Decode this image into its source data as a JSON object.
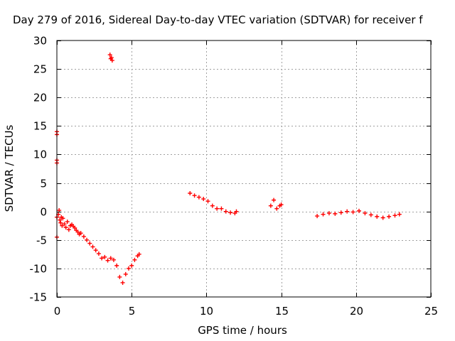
{
  "chart_data": {
    "type": "scatter",
    "title": "Day 279 of 2016, Sidereal Day-to-day VTEC variation (SDTVAR) for receiver f",
    "xlabel": "GPS time / hours",
    "ylabel": "SDTVAR / TECUs",
    "xlim": [
      0,
      25
    ],
    "ylim": [
      -15,
      30
    ],
    "xticks": [
      0,
      5,
      10,
      15,
      20,
      25
    ],
    "yticks": [
      -15,
      -10,
      -5,
      0,
      5,
      10,
      15,
      20,
      25,
      30
    ],
    "xtick_labels": [
      "0",
      "5",
      "10",
      "15",
      "20",
      "25"
    ],
    "ytick_labels": [
      "-15",
      "-10",
      "-5",
      "0",
      "5",
      "10",
      "15",
      "20",
      "25",
      "30"
    ],
    "grid": true,
    "marker": "plus",
    "color": "#ff0000",
    "series": [
      {
        "x": [
          0.0,
          0.0,
          0.0,
          0.0,
          0.0,
          0.0,
          0.1,
          0.15,
          0.2,
          0.25,
          0.3,
          0.35,
          0.4,
          0.5,
          0.6,
          0.7,
          0.8,
          0.9,
          1.0,
          1.1,
          1.2,
          1.3,
          1.4,
          1.5,
          1.6,
          1.8,
          2.0,
          2.2,
          2.4,
          2.6,
          2.8,
          3.0,
          3.2,
          3.4,
          3.6,
          3.8,
          4.0,
          4.2,
          4.4,
          4.6,
          4.8,
          5.0,
          5.2,
          5.4,
          5.5,
          3.55,
          3.6,
          3.65,
          3.7,
          8.9,
          9.2,
          9.5,
          9.8,
          10.1,
          10.4,
          10.7,
          11.0,
          11.3,
          11.6,
          11.9,
          12.0,
          14.3,
          14.5,
          14.7,
          14.9,
          15.0,
          17.4,
          17.8,
          18.2,
          18.6,
          19.0,
          19.4,
          19.8,
          20.2,
          20.6,
          21.0,
          21.4,
          21.8,
          22.2,
          22.6,
          22.9
        ],
        "y": [
          -4.5,
          8.5,
          9.0,
          13.5,
          14.0,
          -1.0,
          -0.5,
          0.2,
          -1.5,
          -2.0,
          -1.0,
          -2.5,
          -1.2,
          -2.2,
          -2.8,
          -1.8,
          -3.2,
          -2.5,
          -2.3,
          -2.6,
          -2.9,
          -3.3,
          -3.6,
          -4.0,
          -3.8,
          -4.4,
          -5.0,
          -5.6,
          -6.2,
          -6.8,
          -7.4,
          -8.2,
          -8.0,
          -8.6,
          -8.2,
          -8.5,
          -9.5,
          -11.5,
          -12.5,
          -11.0,
          -10.0,
          -9.5,
          -8.5,
          -7.8,
          -7.5,
          27.5,
          26.8,
          27.0,
          26.5,
          3.2,
          2.8,
          2.5,
          2.2,
          1.8,
          1.0,
          0.5,
          0.5,
          0.0,
          -0.2,
          -0.3,
          0.0,
          1.0,
          2.0,
          0.5,
          1.0,
          1.2,
          -0.8,
          -0.5,
          -0.3,
          -0.4,
          -0.2,
          0.0,
          -0.1,
          0.1,
          -0.3,
          -0.6,
          -0.9,
          -1.1,
          -0.9,
          -0.7,
          -0.5
        ]
      }
    ]
  }
}
